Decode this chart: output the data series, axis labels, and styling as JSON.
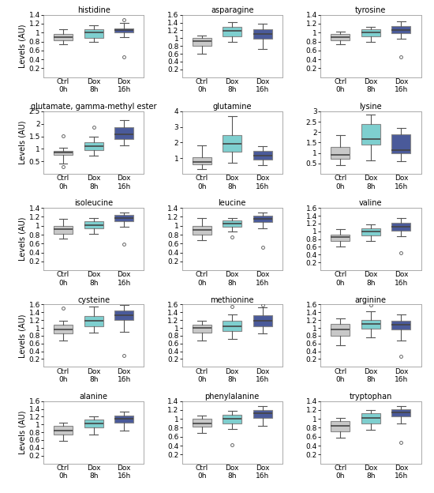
{
  "subplots": [
    {
      "title": "histidine",
      "ylim": [
        0,
        1.4
      ],
      "yticks": [
        0.2,
        0.4,
        0.6,
        0.8,
        1.0,
        1.2,
        1.4
      ],
      "boxes": [
        {
          "q1": 0.82,
          "median": 0.9,
          "q3": 0.97,
          "whislo": 0.73,
          "whishi": 1.07,
          "fliers": [],
          "color": "#c8c8c8"
        },
        {
          "q1": 0.88,
          "median": 1.0,
          "q3": 1.08,
          "whislo": 0.8,
          "whishi": 1.17,
          "fliers": [],
          "color": "#7ecfcf"
        },
        {
          "q1": 1.0,
          "median": 1.05,
          "q3": 1.1,
          "whislo": 0.9,
          "whishi": 1.22,
          "fliers": [
            1.28,
            0.45
          ],
          "color": "#4a5a9a"
        }
      ]
    },
    {
      "title": "asparagine",
      "ylim": [
        0,
        1.6
      ],
      "yticks": [
        0.2,
        0.4,
        0.6,
        0.8,
        1.0,
        1.2,
        1.4,
        1.6
      ],
      "boxes": [
        {
          "q1": 0.8,
          "median": 0.92,
          "q3": 1.0,
          "whislo": 0.6,
          "whishi": 1.07,
          "fliers": [],
          "color": "#c8c8c8"
        },
        {
          "q1": 1.05,
          "median": 1.18,
          "q3": 1.3,
          "whislo": 0.9,
          "whishi": 1.42,
          "fliers": [],
          "color": "#7ecfcf"
        },
        {
          "q1": 0.98,
          "median": 1.1,
          "q3": 1.22,
          "whislo": 0.72,
          "whishi": 1.38,
          "fliers": [],
          "color": "#4a5a9a"
        }
      ]
    },
    {
      "title": "tyrosine",
      "ylim": [
        0,
        1.4
      ],
      "yticks": [
        0.2,
        0.4,
        0.6,
        0.8,
        1.0,
        1.2,
        1.4
      ],
      "boxes": [
        {
          "q1": 0.82,
          "median": 0.9,
          "q3": 0.97,
          "whislo": 0.73,
          "whishi": 1.03,
          "fliers": [],
          "color": "#c8c8c8"
        },
        {
          "q1": 0.92,
          "median": 1.0,
          "q3": 1.08,
          "whislo": 0.8,
          "whishi": 1.12,
          "fliers": [],
          "color": "#7ecfcf"
        },
        {
          "q1": 0.98,
          "median": 1.05,
          "q3": 1.15,
          "whislo": 0.87,
          "whishi": 1.25,
          "fliers": [
            0.45
          ],
          "color": "#4a5a9a"
        }
      ]
    },
    {
      "title": "glutamate, gamma-methyl ester",
      "ylim": [
        0,
        2.5
      ],
      "yticks": [
        0.5,
        1.0,
        1.5,
        2.0,
        2.5
      ],
      "boxes": [
        {
          "q1": 0.75,
          "median": 0.85,
          "q3": 0.92,
          "whislo": 0.4,
          "whishi": 1.05,
          "fliers": [
            1.52,
            0.28
          ],
          "color": "#c8c8c8"
        },
        {
          "q1": 0.95,
          "median": 1.1,
          "q3": 1.25,
          "whislo": 0.72,
          "whishi": 1.5,
          "fliers": [
            1.88
          ],
          "color": "#7ecfcf"
        },
        {
          "q1": 1.4,
          "median": 1.58,
          "q3": 1.85,
          "whislo": 1.12,
          "whishi": 2.15,
          "fliers": [],
          "color": "#4a5a9a"
        }
      ]
    },
    {
      "title": "glutamine",
      "ylim": [
        0,
        4
      ],
      "yticks": [
        1,
        2,
        3,
        4
      ],
      "boxes": [
        {
          "q1": 0.6,
          "median": 0.75,
          "q3": 1.05,
          "whislo": 0.3,
          "whishi": 1.8,
          "fliers": [],
          "color": "#c8c8c8"
        },
        {
          "q1": 1.4,
          "median": 1.9,
          "q3": 2.5,
          "whislo": 0.7,
          "whishi": 3.7,
          "fliers": [],
          "color": "#7ecfcf"
        },
        {
          "q1": 0.9,
          "median": 1.15,
          "q3": 1.45,
          "whislo": 0.55,
          "whishi": 1.75,
          "fliers": [],
          "color": "#4a5a9a"
        }
      ]
    },
    {
      "title": "lysine",
      "ylim": [
        0,
        3
      ],
      "yticks": [
        0.5,
        1.0,
        1.5,
        2.0,
        2.5,
        3.0
      ],
      "boxes": [
        {
          "q1": 0.7,
          "median": 0.9,
          "q3": 1.3,
          "whislo": 0.4,
          "whishi": 1.85,
          "fliers": [],
          "color": "#c8c8c8"
        },
        {
          "q1": 1.4,
          "median": 1.65,
          "q3": 2.4,
          "whislo": 0.65,
          "whishi": 2.85,
          "fliers": [],
          "color": "#7ecfcf"
        },
        {
          "q1": 1.0,
          "median": 1.15,
          "q3": 1.9,
          "whislo": 0.6,
          "whishi": 2.2,
          "fliers": [],
          "color": "#4a5a9a"
        }
      ]
    },
    {
      "title": "isoleucine",
      "ylim": [
        0,
        1.4
      ],
      "yticks": [
        0.2,
        0.4,
        0.6,
        0.8,
        1.0,
        1.2,
        1.4
      ],
      "boxes": [
        {
          "q1": 0.82,
          "median": 0.92,
          "q3": 1.0,
          "whislo": 0.72,
          "whishi": 1.15,
          "fliers": [],
          "color": "#c8c8c8"
        },
        {
          "q1": 0.95,
          "median": 1.02,
          "q3": 1.1,
          "whislo": 0.82,
          "whishi": 1.17,
          "fliers": [],
          "color": "#7ecfcf"
        },
        {
          "q1": 1.1,
          "median": 1.18,
          "q3": 1.25,
          "whislo": 0.98,
          "whishi": 1.3,
          "fliers": [
            0.58
          ],
          "color": "#4a5a9a"
        }
      ]
    },
    {
      "title": "leucine",
      "ylim": [
        0,
        1.4
      ],
      "yticks": [
        0.2,
        0.4,
        0.6,
        0.8,
        1.0,
        1.2,
        1.4
      ],
      "boxes": [
        {
          "q1": 0.8,
          "median": 0.9,
          "q3": 1.0,
          "whislo": 0.68,
          "whishi": 1.18,
          "fliers": [],
          "color": "#c8c8c8"
        },
        {
          "q1": 0.98,
          "median": 1.05,
          "q3": 1.12,
          "whislo": 0.88,
          "whishi": 1.18,
          "fliers": [
            0.75
          ],
          "color": "#7ecfcf"
        },
        {
          "q1": 1.08,
          "median": 1.15,
          "q3": 1.22,
          "whislo": 0.95,
          "whishi": 1.3,
          "fliers": [
            0.52
          ],
          "color": "#4a5a9a"
        }
      ]
    },
    {
      "title": "valine",
      "ylim": [
        0,
        1.6
      ],
      "yticks": [
        0.2,
        0.4,
        0.6,
        0.8,
        1.0,
        1.2,
        1.4,
        1.6
      ],
      "boxes": [
        {
          "q1": 0.75,
          "median": 0.85,
          "q3": 0.92,
          "whislo": 0.62,
          "whishi": 1.05,
          "fliers": [],
          "color": "#c8c8c8"
        },
        {
          "q1": 0.9,
          "median": 1.0,
          "q3": 1.08,
          "whislo": 0.75,
          "whishi": 1.18,
          "fliers": [],
          "color": "#7ecfcf"
        },
        {
          "q1": 1.02,
          "median": 1.12,
          "q3": 1.22,
          "whislo": 0.88,
          "whishi": 1.35,
          "fliers": [
            0.45
          ],
          "color": "#4a5a9a"
        }
      ]
    },
    {
      "title": "cysteine",
      "ylim": [
        0,
        1.6
      ],
      "yticks": [
        0.2,
        0.4,
        0.6,
        0.8,
        1.0,
        1.2,
        1.4,
        1.6
      ],
      "boxes": [
        {
          "q1": 0.85,
          "median": 0.95,
          "q3": 1.08,
          "whislo": 0.68,
          "whishi": 1.18,
          "fliers": [
            1.5
          ],
          "color": "#c8c8c8"
        },
        {
          "q1": 1.05,
          "median": 1.18,
          "q3": 1.3,
          "whislo": 0.88,
          "whishi": 1.55,
          "fliers": [],
          "color": "#7ecfcf"
        },
        {
          "q1": 1.2,
          "median": 1.32,
          "q3": 1.45,
          "whislo": 0.9,
          "whishi": 1.58,
          "fliers": [
            0.3
          ],
          "color": "#4a5a9a"
        }
      ]
    },
    {
      "title": "methionine",
      "ylim": [
        0,
        1.6
      ],
      "yticks": [
        0.2,
        0.4,
        0.6,
        0.8,
        1.0,
        1.2,
        1.4,
        1.6
      ],
      "boxes": [
        {
          "q1": 0.88,
          "median": 1.0,
          "q3": 1.08,
          "whislo": 0.68,
          "whishi": 1.18,
          "fliers": [],
          "color": "#c8c8c8"
        },
        {
          "q1": 0.92,
          "median": 1.05,
          "q3": 1.18,
          "whislo": 0.72,
          "whishi": 1.35,
          "fliers": [
            1.55
          ],
          "color": "#7ecfcf"
        },
        {
          "q1": 1.05,
          "median": 1.18,
          "q3": 1.32,
          "whislo": 0.85,
          "whishi": 1.52,
          "fliers": [
            1.58
          ],
          "color": "#4a5a9a"
        }
      ]
    },
    {
      "title": "arginine",
      "ylim": [
        0,
        1.6
      ],
      "yticks": [
        0.2,
        0.4,
        0.6,
        0.8,
        1.0,
        1.2,
        1.4,
        1.6
      ],
      "boxes": [
        {
          "q1": 0.8,
          "median": 0.95,
          "q3": 1.1,
          "whislo": 0.55,
          "whishi": 1.25,
          "fliers": [],
          "color": "#c8c8c8"
        },
        {
          "q1": 0.98,
          "median": 1.1,
          "q3": 1.2,
          "whislo": 0.75,
          "whishi": 1.42,
          "fliers": [
            1.58
          ],
          "color": "#7ecfcf"
        },
        {
          "q1": 0.95,
          "median": 1.08,
          "q3": 1.18,
          "whislo": 0.68,
          "whishi": 1.35,
          "fliers": [
            0.28
          ],
          "color": "#4a5a9a"
        }
      ]
    },
    {
      "title": "alanine",
      "ylim": [
        0,
        1.6
      ],
      "yticks": [
        0.2,
        0.4,
        0.6,
        0.8,
        1.0,
        1.2,
        1.4,
        1.6
      ],
      "boxes": [
        {
          "q1": 0.75,
          "median": 0.85,
          "q3": 0.97,
          "whislo": 0.58,
          "whishi": 1.05,
          "fliers": [],
          "color": "#c8c8c8"
        },
        {
          "q1": 0.92,
          "median": 1.02,
          "q3": 1.12,
          "whislo": 0.75,
          "whishi": 1.2,
          "fliers": [],
          "color": "#7ecfcf"
        },
        {
          "q1": 1.05,
          "median": 1.15,
          "q3": 1.22,
          "whislo": 0.85,
          "whishi": 1.32,
          "fliers": [],
          "color": "#4a5a9a"
        }
      ]
    },
    {
      "title": "phenylalanine",
      "ylim": [
        0,
        1.4
      ],
      "yticks": [
        0.2,
        0.4,
        0.6,
        0.8,
        1.0,
        1.2,
        1.4
      ],
      "boxes": [
        {
          "q1": 0.82,
          "median": 0.9,
          "q3": 1.0,
          "whislo": 0.68,
          "whishi": 1.08,
          "fliers": [],
          "color": "#c8c8c8"
        },
        {
          "q1": 0.9,
          "median": 1.0,
          "q3": 1.1,
          "whislo": 0.78,
          "whishi": 1.18,
          "fliers": [
            0.42
          ],
          "color": "#7ecfcf"
        },
        {
          "q1": 1.02,
          "median": 1.12,
          "q3": 1.2,
          "whislo": 0.85,
          "whishi": 1.28,
          "fliers": [],
          "color": "#4a5a9a"
        }
      ]
    },
    {
      "title": "tryptophan",
      "ylim": [
        0,
        1.4
      ],
      "yticks": [
        0.2,
        0.4,
        0.6,
        0.8,
        1.0,
        1.2,
        1.4
      ],
      "boxes": [
        {
          "q1": 0.72,
          "median": 0.85,
          "q3": 0.95,
          "whislo": 0.58,
          "whishi": 1.02,
          "fliers": [],
          "color": "#c8c8c8"
        },
        {
          "q1": 0.9,
          "median": 1.02,
          "q3": 1.12,
          "whislo": 0.75,
          "whishi": 1.2,
          "fliers": [],
          "color": "#7ecfcf"
        },
        {
          "q1": 1.05,
          "median": 1.15,
          "q3": 1.22,
          "whislo": 0.9,
          "whishi": 1.28,
          "fliers": [
            0.48
          ],
          "color": "#4a5a9a"
        }
      ]
    }
  ],
  "ylabel": "Levels (AU)",
  "nrows": 5,
  "ncols": 3,
  "figsize": [
    5.5,
    6.24
  ],
  "background_color": "#ffffff",
  "box_edge_color": "#888888",
  "median_color": "#444444",
  "whisker_color": "#555555",
  "flier_color": "#666666",
  "spine_color": "#aaaaaa"
}
